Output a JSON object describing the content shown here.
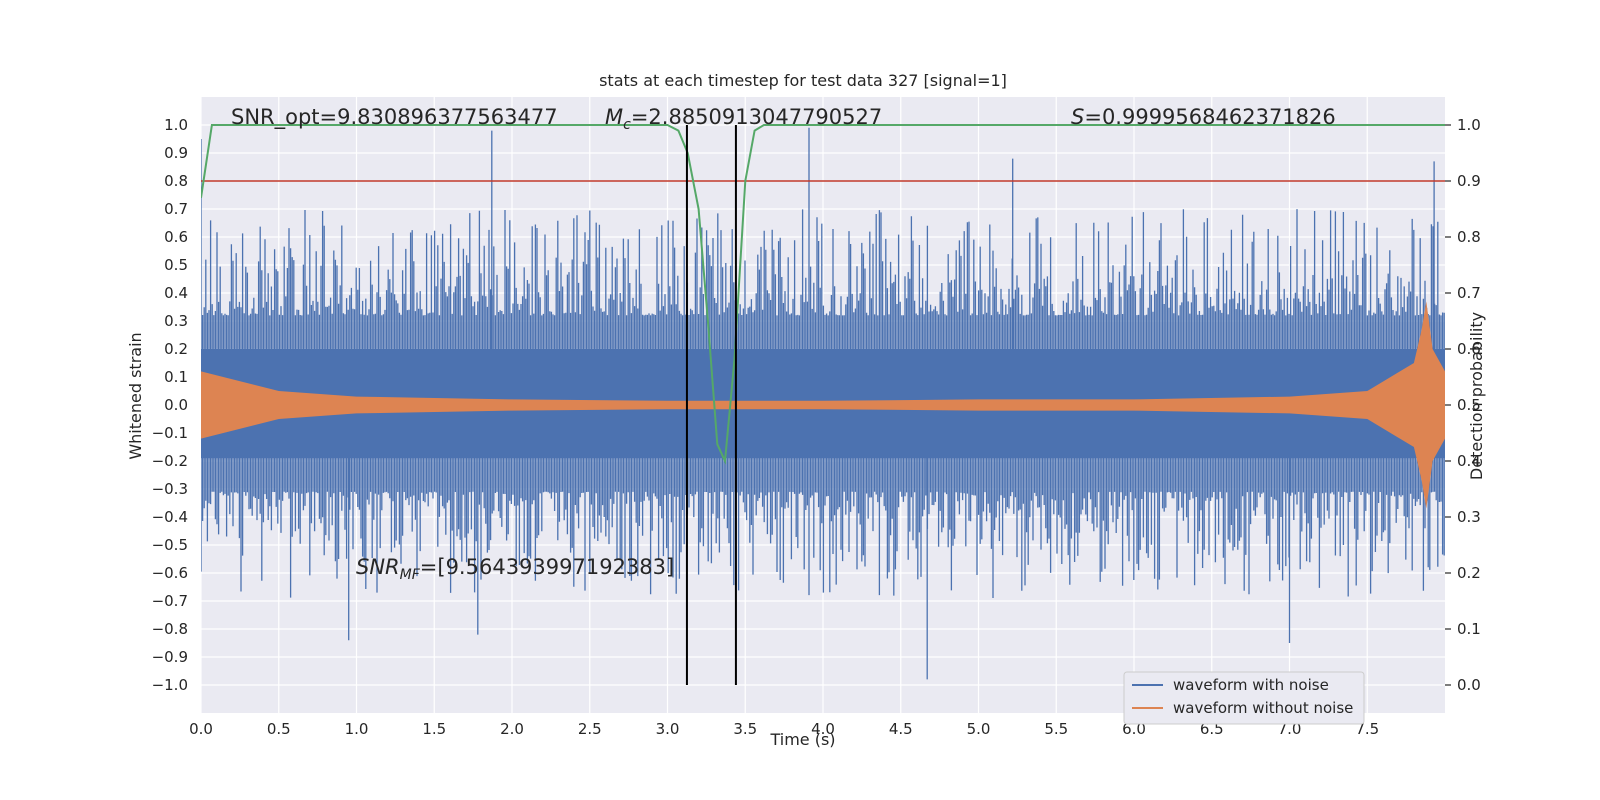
{
  "chart_data": {
    "type": "line",
    "title": "stats at each timestep for test data 327 [signal=1]",
    "xlabel": "Time (s)",
    "ylabel": "Whitened strain",
    "y2label": "Detection probability",
    "xlim": [
      0.0,
      8.0
    ],
    "ylim": [
      -1.1,
      1.1
    ],
    "y2lim": [
      -0.05,
      1.05
    ],
    "grid": true,
    "background": "#eaeaf2",
    "x_ticks": [
      0.0,
      0.5,
      1.0,
      1.5,
      2.0,
      2.5,
      3.0,
      3.5,
      4.0,
      4.5,
      5.0,
      5.5,
      6.0,
      6.5,
      7.0,
      7.5
    ],
    "x_tick_labels": [
      "0.0",
      "0.5",
      "1.0",
      "1.5",
      "2.0",
      "2.5",
      "3.0",
      "3.5",
      "4.0",
      "4.5",
      "5.0",
      "5.5",
      "6.0",
      "6.5",
      "7.0",
      "7.5"
    ],
    "y_ticks": [
      1.0,
      0.9,
      0.8,
      0.7,
      0.6,
      0.5,
      0.4,
      0.3,
      0.2,
      0.1,
      0.0,
      -0.1,
      -0.2,
      -0.3,
      -0.4,
      -0.5,
      -0.6,
      -0.7,
      -0.8,
      -0.9,
      -1.0
    ],
    "y_tick_labels": [
      "1.0",
      "0.9",
      "0.8",
      "0.7",
      "0.6",
      "0.5",
      "0.4",
      "0.3",
      "0.2",
      "0.1",
      "0.0",
      "−0.1",
      "−0.2",
      "−0.3",
      "−0.4",
      "−0.5",
      "−0.6",
      "−0.7",
      "−0.8",
      "−0.9",
      "−1.0"
    ],
    "y2_ticks": [
      1.0,
      0.9,
      0.8,
      0.7,
      0.6,
      0.5,
      0.4,
      0.3,
      0.2,
      0.1,
      0.0
    ],
    "y2_tick_labels": [
      "1.0",
      "0.9",
      "0.8",
      "0.7",
      "0.6",
      "0.5",
      "0.4",
      "0.3",
      "0.2",
      "0.1",
      "0.0"
    ],
    "annotations": {
      "snr_opt": "SNR_opt=9.830896377563477",
      "mc_symbol": "M",
      "mc_subscript": "c",
      "mc_value": "=2.8850913047790527",
      "s_symbol": "S",
      "s_value": "=0.9999568462371826",
      "snr_mf_symbol": "SNR",
      "snr_mf_subscript": "MF",
      "snr_mf_value": "=[9.564393997192383]"
    },
    "threshold": {
      "y2": 0.9,
      "color": "#c0392b"
    },
    "vlines": [
      3.125,
      3.44
    ],
    "series": [
      {
        "name": "waveform with noise",
        "color": "#4c72b0",
        "band_upper": 0.2,
        "band_lower": -0.19,
        "spike_max": [
          [
            0.0,
            0.95
          ],
          [
            1.87,
            0.98
          ],
          [
            3.91,
            0.99
          ],
          [
            5.22,
            0.88
          ],
          [
            7.93,
            0.87
          ]
        ],
        "spike_min": [
          [
            0.95,
            -0.84
          ],
          [
            1.78,
            -0.82
          ],
          [
            4.67,
            -0.98
          ],
          [
            7.0,
            -0.85
          ]
        ]
      },
      {
        "name": "waveform without noise",
        "color": "#dd8452",
        "envelope": [
          [
            0.0,
            0.12
          ],
          [
            0.5,
            0.05
          ],
          [
            1.0,
            0.03
          ],
          [
            2.0,
            0.02
          ],
          [
            3.0,
            0.015
          ],
          [
            4.0,
            0.015
          ],
          [
            5.0,
            0.02
          ],
          [
            6.0,
            0.02
          ],
          [
            7.0,
            0.03
          ],
          [
            7.5,
            0.05
          ],
          [
            7.8,
            0.15
          ],
          [
            7.85,
            0.27
          ],
          [
            7.88,
            0.37
          ],
          [
            7.92,
            0.2
          ],
          [
            8.0,
            0.12
          ]
        ]
      },
      {
        "name": "detection probability",
        "color": "#55a868",
        "axis": "y2",
        "x": [
          0.0,
          0.07,
          0.14,
          2.8,
          3.0,
          3.07,
          3.13,
          3.2,
          3.26,
          3.32,
          3.37,
          3.43,
          3.5,
          3.56,
          3.62,
          4.0,
          8.0
        ],
        "y": [
          0.87,
          1.0,
          1.0,
          1.0,
          1.0,
          0.99,
          0.95,
          0.85,
          0.65,
          0.43,
          0.4,
          0.58,
          0.9,
          0.99,
          1.0,
          1.0,
          1.0
        ]
      }
    ],
    "legend": {
      "position": "lower-right",
      "items": [
        "waveform with noise",
        "waveform without noise"
      ]
    }
  }
}
